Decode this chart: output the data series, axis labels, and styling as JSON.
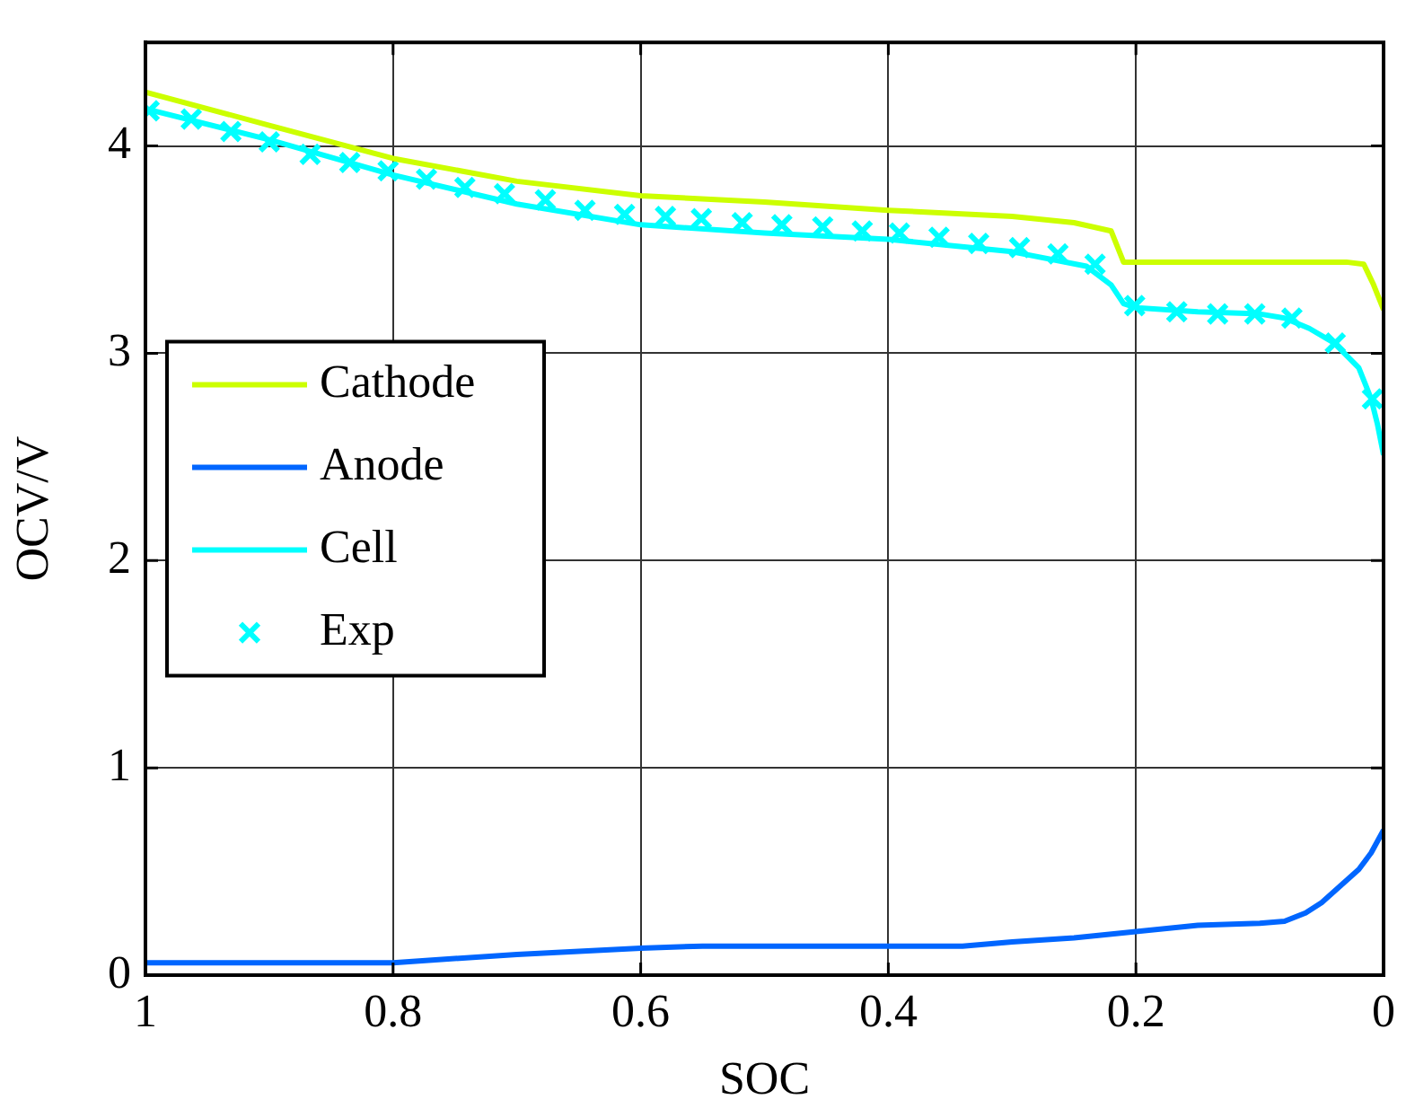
{
  "chart_data": {
    "type": "line",
    "xlabel": "SOC",
    "ylabel": "OCV/V",
    "xlim": [
      1,
      0
    ],
    "ylim": [
      0,
      4.5
    ],
    "xticks": [
      1,
      0.8,
      0.6,
      0.4,
      0.2,
      0
    ],
    "yticks": [
      0,
      1,
      2,
      3,
      4
    ],
    "grid": true,
    "legend": "left",
    "line_style": "solid",
    "series": [
      {
        "name": "Cathode",
        "color": "#ccff00",
        "x": [
          1,
          0.9,
          0.8,
          0.7,
          0.6,
          0.5,
          0.4,
          0.3,
          0.25,
          0.22,
          0.21,
          0.2,
          0.1,
          0.03,
          0.016,
          0.008,
          0
        ],
        "values": [
          4.26,
          4.1,
          3.94,
          3.83,
          3.76,
          3.73,
          3.69,
          3.66,
          3.63,
          3.59,
          3.44,
          3.44,
          3.44,
          3.44,
          3.43,
          3.33,
          3.21
        ]
      },
      {
        "name": "Anode",
        "color": "#0066ff",
        "x": [
          1,
          0.8,
          0.7,
          0.6,
          0.55,
          0.45,
          0.34,
          0.3,
          0.25,
          0.2,
          0.15,
          0.1,
          0.08,
          0.063,
          0.05,
          0.035,
          0.02,
          0.01,
          0
        ],
        "values": [
          0.06,
          0.06,
          0.1,
          0.13,
          0.14,
          0.14,
          0.14,
          0.16,
          0.18,
          0.21,
          0.24,
          0.25,
          0.26,
          0.3,
          0.35,
          0.43,
          0.51,
          0.59,
          0.7
        ]
      },
      {
        "name": "Cell",
        "color": "#00ffff",
        "x": [
          1,
          0.9,
          0.8,
          0.7,
          0.6,
          0.5,
          0.4,
          0.3,
          0.24,
          0.22,
          0.21,
          0.2,
          0.15,
          0.1,
          0.08,
          0.06,
          0.04,
          0.02,
          0.01,
          0.005,
          0
        ],
        "values": [
          4.18,
          4.03,
          3.86,
          3.72,
          3.62,
          3.58,
          3.55,
          3.49,
          3.42,
          3.33,
          3.24,
          3.22,
          3.2,
          3.19,
          3.17,
          3.12,
          3.05,
          2.93,
          2.78,
          2.66,
          2.51
        ]
      },
      {
        "name": "Exp",
        "color": "#00ffff",
        "type": "scatter",
        "marker": "cross",
        "x": [
          0.997,
          0.963,
          0.931,
          0.9,
          0.867,
          0.835,
          0.804,
          0.773,
          0.742,
          0.71,
          0.677,
          0.645,
          0.613,
          0.58,
          0.551,
          0.518,
          0.486,
          0.453,
          0.421,
          0.391,
          0.359,
          0.327,
          0.294,
          0.263,
          0.233,
          0.201,
          0.167,
          0.134,
          0.104,
          0.074,
          0.039,
          0.009
        ],
        "values": [
          4.17,
          4.13,
          4.07,
          4.02,
          3.96,
          3.92,
          3.88,
          3.84,
          3.8,
          3.77,
          3.74,
          3.69,
          3.67,
          3.66,
          3.65,
          3.63,
          3.62,
          3.61,
          3.59,
          3.58,
          3.56,
          3.53,
          3.51,
          3.48,
          3.43,
          3.23,
          3.2,
          3.19,
          3.19,
          3.17,
          3.05,
          2.78
        ]
      }
    ]
  }
}
